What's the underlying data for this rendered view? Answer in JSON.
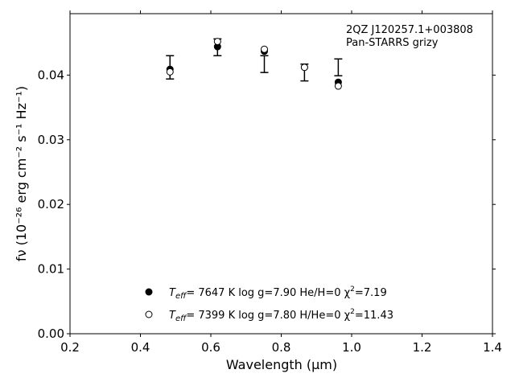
{
  "chart_data": {
    "type": "scatter",
    "xlabel": "Wavelength (μm)",
    "ylabel": "fν (10⁻²⁶ erg cm⁻² s⁻¹ Hz⁻¹)",
    "xlim": [
      0.2,
      1.4
    ],
    "ylim": [
      0.0,
      0.0495
    ],
    "xticks": [
      "0.2",
      "0.4",
      "0.6",
      "0.8",
      "1.0",
      "1.2",
      "1.4"
    ],
    "yticks": [
      "0.00",
      "0.01",
      "0.02",
      "0.03",
      "0.04"
    ],
    "annotation": [
      "2QZ J120257.1+003808",
      "Pan-STARRS grizy"
    ],
    "observed": {
      "x": [
        0.484,
        0.619,
        0.752,
        0.866,
        0.962
      ],
      "y": [
        0.0412,
        0.0443,
        0.0417,
        0.0404,
        0.0412
      ],
      "yerr": [
        0.0018,
        0.0013,
        0.0013,
        0.0013,
        0.0013
      ]
    },
    "series": [
      {
        "name": "Teff= 7647 K log g=7.90 He/H=0 χ²=7.19",
        "marker": "filled-circle",
        "x": [
          0.484,
          0.619,
          0.752,
          0.866,
          0.962
        ],
        "y": [
          0.0409,
          0.0444,
          0.0437,
          0.0412,
          0.0389
        ]
      },
      {
        "name": "Teff= 7399 K log g=7.80 H/He=0 χ²=11.43",
        "marker": "open-circle",
        "x": [
          0.484,
          0.619,
          0.752,
          0.866,
          0.962
        ],
        "y": [
          0.0405,
          0.0452,
          0.044,
          0.0412,
          0.0383
        ]
      }
    ],
    "legend": {
      "placement": "bottom-center",
      "entries": [
        {
          "teff": "T",
          "teff_sub": "eff",
          "rest": "=  7647 K  log g=7.90  He/H=0  χ",
          "sup": "2",
          "tail": "=7.19"
        },
        {
          "teff": "T",
          "teff_sub": "eff",
          "rest": "=  7399 K  log g=7.80  H/He=0  χ",
          "sup": "2",
          "tail": "=11.43"
        }
      ]
    },
    "grid": false
  }
}
